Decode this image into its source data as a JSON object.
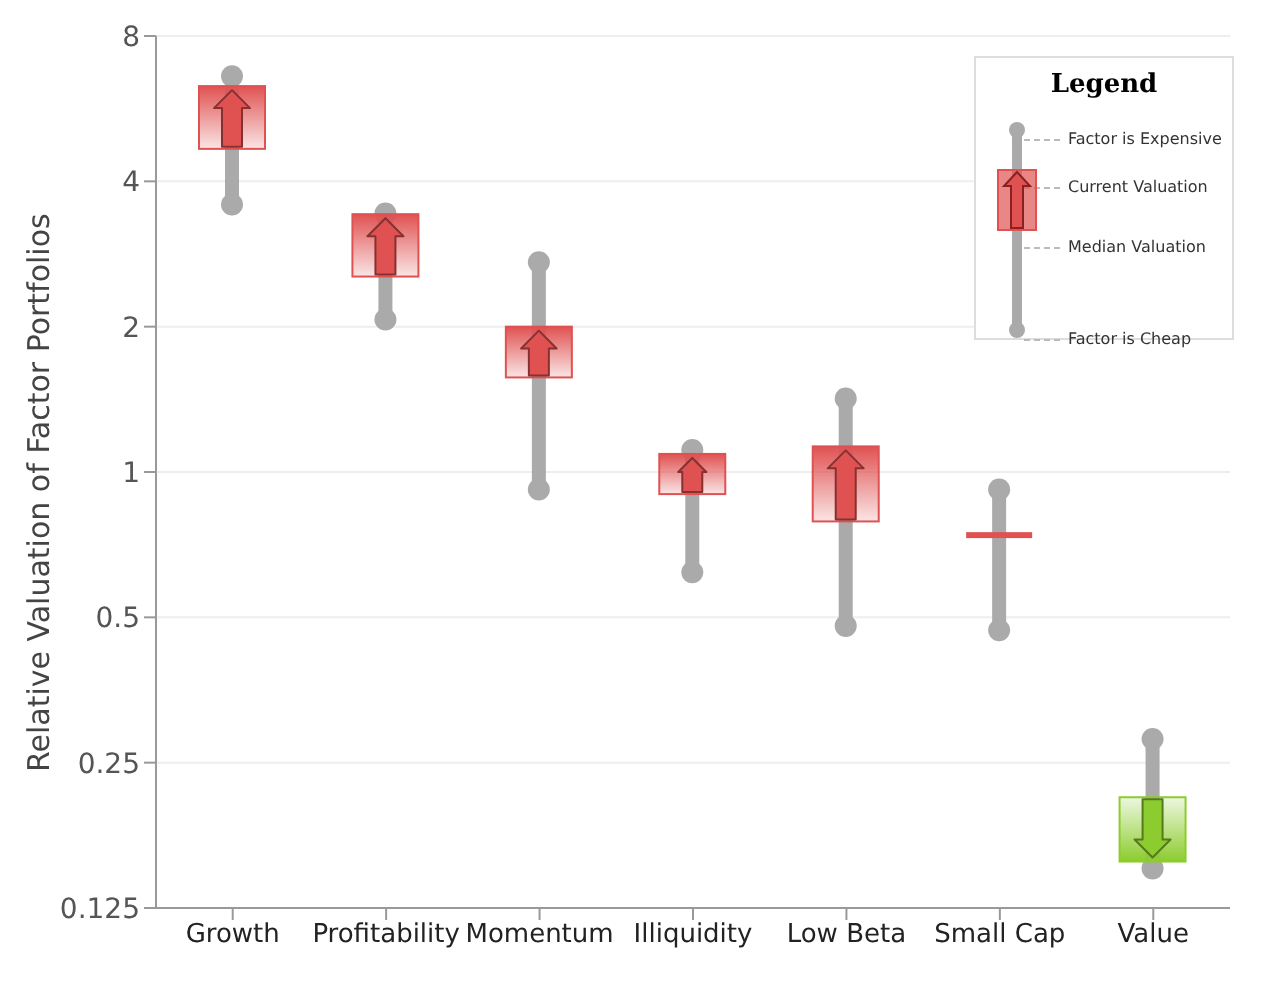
{
  "chart_data": {
    "type": "bar",
    "ylabel": "Relative Valuation of Factor Portfolios",
    "categories": [
      "Growth",
      "Profitability",
      "Momentum",
      "Illiquidity",
      "Low Beta",
      "Small Cap",
      "Value"
    ],
    "series": [
      {
        "color": "#aaaaaa",
        "marker": "circle",
        "base": [
          3.58,
          2.07,
          0.92,
          0.62,
          0.48,
          0.47,
          0.151
        ],
        "values": [
          3.02,
          1.36,
          1.8,
          0.49,
          0.94,
          0.45,
          0.129
        ]
      },
      {
        "colors": [
          "#e05252",
          "#e05252",
          "#e05252",
          "#e05252",
          "#e05252",
          "#e05252",
          "#8ccc2e"
        ],
        "base": [
          4.67,
          2.54,
          1.57,
          0.9,
          0.79,
          0.74,
          0.212
        ],
        "values": [
          1.63,
          0.88,
          0.43,
          0.19,
          0.34,
          0,
          -0.056
        ]
      }
    ],
    "log": "y",
    "ylim": [
      0.125,
      8
    ],
    "yticks": [
      0.125,
      0.25,
      0.5,
      1,
      2,
      4,
      8
    ],
    "grid": "y",
    "annotations": [
      "Legend",
      "Factor is Expensive",
      "Current Valuation",
      "Median Valuation",
      "Factor is Cheap"
    ]
  }
}
